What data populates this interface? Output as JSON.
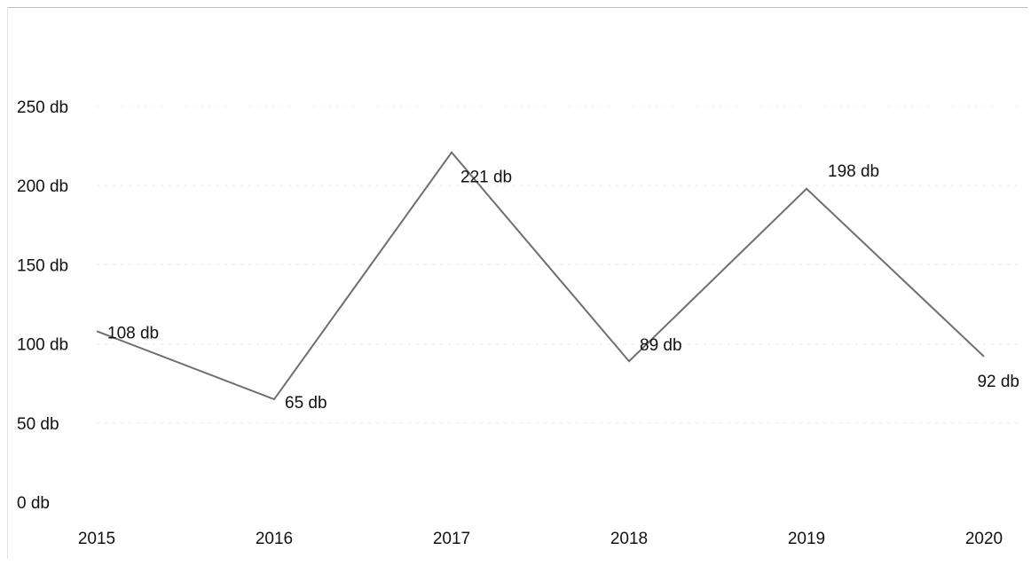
{
  "chart_data": {
    "type": "line",
    "title": "",
    "xlabel": "",
    "ylabel": "",
    "x": [
      "2015",
      "2016",
      "2017",
      "2018",
      "2019",
      "2020"
    ],
    "series": [
      {
        "values": [
          108,
          65,
          221,
          89,
          198,
          92
        ],
        "data_labels": [
          "108 db",
          "65 db",
          "221 db",
          "89 db",
          "198 db",
          "92 db"
        ]
      }
    ],
    "ylim": [
      0,
      250
    ],
    "y_ticks": [
      0,
      50,
      100,
      150,
      200,
      250
    ],
    "y_tick_labels": [
      "0 db",
      "50 db",
      "100 db",
      "150 db",
      "200 db",
      "250 db"
    ],
    "grid": true,
    "legend": "none",
    "colors": {
      "line": "#6f6f6f",
      "text": "#111111",
      "grid": "#ececec"
    }
  }
}
